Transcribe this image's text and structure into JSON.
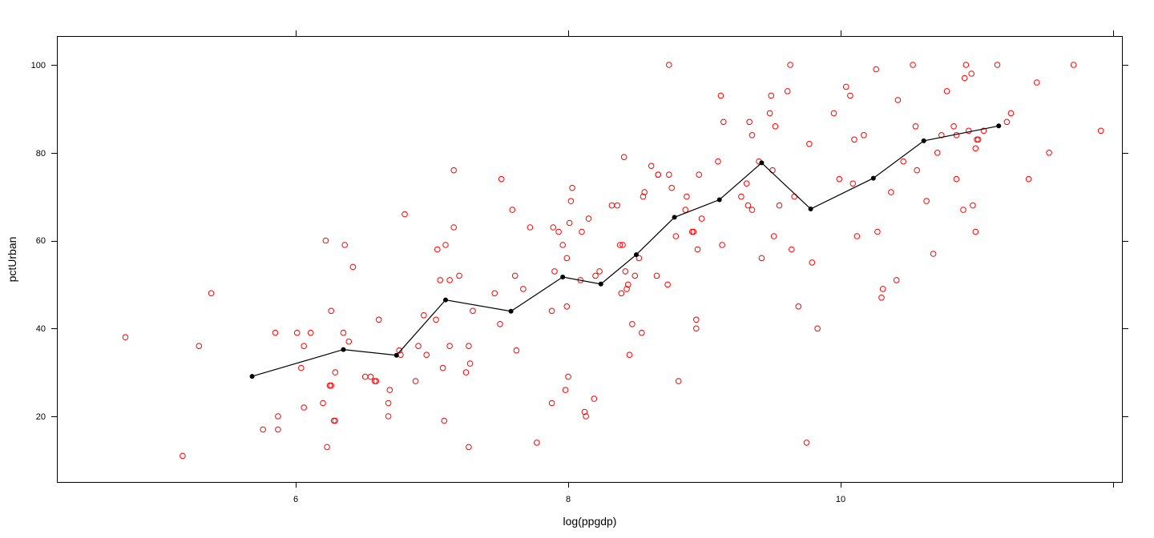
{
  "chart_data": {
    "type": "scatter",
    "title": "",
    "xlabel": "log(ppgdp)",
    "ylabel": "pctUrban",
    "xlim": [
      4.25,
      12.04
    ],
    "ylim": [
      6.3,
      106.4
    ],
    "x_ticks": [
      6,
      8,
      10,
      12
    ],
    "x_tick_labels": [
      "6",
      "8",
      "10",
      ""
    ],
    "y_ticks": [
      20,
      40,
      60,
      80,
      100
    ],
    "y_tick_labels": [
      "20",
      "40",
      "60",
      "80",
      "100"
    ],
    "grid": false,
    "legend": null,
    "colors": {
      "points": "#ff0000",
      "line": "#000000",
      "frame": "#000000"
    },
    "series": [
      {
        "name": "observations",
        "type": "scatter",
        "marker": "open-circle",
        "points": [
          [
            4.75,
            38
          ],
          [
            5.17,
            11
          ],
          [
            5.29,
            36
          ],
          [
            5.38,
            48
          ],
          [
            5.76,
            17
          ],
          [
            5.85,
            39
          ],
          [
            5.87,
            17
          ],
          [
            5.87,
            20
          ],
          [
            6.01,
            39
          ],
          [
            6.04,
            31
          ],
          [
            6.06,
            36
          ],
          [
            6.06,
            22
          ],
          [
            6.11,
            39
          ],
          [
            6.2,
            23
          ],
          [
            6.22,
            60
          ],
          [
            6.23,
            13
          ],
          [
            6.25,
            27
          ],
          [
            6.26,
            27
          ],
          [
            6.26,
            44
          ],
          [
            6.28,
            19
          ],
          [
            6.29,
            19
          ],
          [
            6.29,
            30
          ],
          [
            6.35,
            39
          ],
          [
            6.36,
            59
          ],
          [
            6.39,
            37
          ],
          [
            6.42,
            54
          ],
          [
            6.51,
            29
          ],
          [
            6.55,
            29
          ],
          [
            6.58,
            28
          ],
          [
            6.59,
            28
          ],
          [
            6.61,
            42
          ],
          [
            6.68,
            23
          ],
          [
            6.68,
            20
          ],
          [
            6.69,
            26
          ],
          [
            6.76,
            35
          ],
          [
            6.77,
            34
          ],
          [
            6.8,
            66
          ],
          [
            6.88,
            28
          ],
          [
            6.9,
            36
          ],
          [
            6.94,
            43
          ],
          [
            6.96,
            34
          ],
          [
            7.03,
            42
          ],
          [
            7.04,
            58
          ],
          [
            7.06,
            51
          ],
          [
            7.08,
            31
          ],
          [
            7.09,
            19
          ],
          [
            7.1,
            59
          ],
          [
            7.13,
            36
          ],
          [
            7.13,
            51
          ],
          [
            7.16,
            63
          ],
          [
            7.16,
            76
          ],
          [
            7.2,
            52
          ],
          [
            7.25,
            30
          ],
          [
            7.27,
            36
          ],
          [
            7.27,
            13
          ],
          [
            7.28,
            32
          ],
          [
            7.3,
            44
          ],
          [
            7.46,
            48
          ],
          [
            7.5,
            41
          ],
          [
            7.51,
            74
          ],
          [
            7.59,
            67
          ],
          [
            7.61,
            52
          ],
          [
            7.62,
            35
          ],
          [
            7.67,
            49
          ],
          [
            7.72,
            63
          ],
          [
            7.77,
            14
          ],
          [
            7.88,
            23
          ],
          [
            7.88,
            44
          ],
          [
            7.89,
            63
          ],
          [
            7.9,
            53
          ],
          [
            7.93,
            62
          ],
          [
            7.96,
            59
          ],
          [
            7.98,
            26
          ],
          [
            7.99,
            56
          ],
          [
            7.99,
            45
          ],
          [
            8.0,
            29
          ],
          [
            8.01,
            64
          ],
          [
            8.02,
            69
          ],
          [
            8.03,
            72
          ],
          [
            8.09,
            51
          ],
          [
            8.1,
            62
          ],
          [
            8.12,
            21
          ],
          [
            8.13,
            20
          ],
          [
            8.15,
            65
          ],
          [
            8.19,
            24
          ],
          [
            8.2,
            52
          ],
          [
            8.23,
            53
          ],
          [
            8.32,
            68
          ],
          [
            8.36,
            68
          ],
          [
            8.38,
            59
          ],
          [
            8.39,
            48
          ],
          [
            8.4,
            59
          ],
          [
            8.41,
            79
          ],
          [
            8.42,
            53
          ],
          [
            8.43,
            49
          ],
          [
            8.44,
            50
          ],
          [
            8.45,
            34
          ],
          [
            8.47,
            41
          ],
          [
            8.49,
            52
          ],
          [
            8.52,
            56
          ],
          [
            8.54,
            39
          ],
          [
            8.55,
            70
          ],
          [
            8.56,
            71
          ],
          [
            8.61,
            77
          ],
          [
            8.65,
            52
          ],
          [
            8.66,
            75
          ],
          [
            8.66,
            75
          ],
          [
            8.73,
            50
          ],
          [
            8.74,
            75
          ],
          [
            8.74,
            100
          ],
          [
            8.76,
            72
          ],
          [
            8.79,
            61
          ],
          [
            8.81,
            28
          ],
          [
            8.86,
            67
          ],
          [
            8.87,
            70
          ],
          [
            8.91,
            62
          ],
          [
            8.92,
            62
          ],
          [
            8.94,
            42
          ],
          [
            8.94,
            40
          ],
          [
            8.95,
            58
          ],
          [
            8.96,
            75
          ],
          [
            8.98,
            65
          ],
          [
            9.1,
            78
          ],
          [
            9.12,
            93
          ],
          [
            9.13,
            59
          ],
          [
            9.14,
            87
          ],
          [
            9.27,
            70
          ],
          [
            9.31,
            73
          ],
          [
            9.32,
            68
          ],
          [
            9.33,
            87
          ],
          [
            9.35,
            67
          ],
          [
            9.35,
            84
          ],
          [
            9.4,
            78
          ],
          [
            9.42,
            56
          ],
          [
            9.48,
            89
          ],
          [
            9.49,
            93
          ],
          [
            9.5,
            76
          ],
          [
            9.51,
            61
          ],
          [
            9.52,
            86
          ],
          [
            9.55,
            68
          ],
          [
            9.61,
            94
          ],
          [
            9.63,
            100
          ],
          [
            9.64,
            58
          ],
          [
            9.66,
            70
          ],
          [
            9.69,
            45
          ],
          [
            9.75,
            14
          ],
          [
            9.77,
            82
          ],
          [
            9.79,
            55
          ],
          [
            9.83,
            40
          ],
          [
            9.95,
            89
          ],
          [
            9.99,
            74
          ],
          [
            10.04,
            95
          ],
          [
            10.07,
            93
          ],
          [
            10.09,
            73
          ],
          [
            10.1,
            83
          ],
          [
            10.12,
            61
          ],
          [
            10.17,
            84
          ],
          [
            10.26,
            99
          ],
          [
            10.27,
            62
          ],
          [
            10.3,
            47
          ],
          [
            10.31,
            49
          ],
          [
            10.37,
            71
          ],
          [
            10.41,
            51
          ],
          [
            10.42,
            92
          ],
          [
            10.46,
            78
          ],
          [
            10.53,
            100
          ],
          [
            10.55,
            86
          ],
          [
            10.56,
            76
          ],
          [
            10.63,
            69
          ],
          [
            10.68,
            57
          ],
          [
            10.71,
            80
          ],
          [
            10.74,
            84
          ],
          [
            10.78,
            94
          ],
          [
            10.83,
            86
          ],
          [
            10.85,
            84
          ],
          [
            10.85,
            74
          ],
          [
            10.9,
            67
          ],
          [
            10.91,
            97
          ],
          [
            10.92,
            100
          ],
          [
            10.94,
            85
          ],
          [
            10.96,
            98
          ],
          [
            10.97,
            68
          ],
          [
            10.99,
            81
          ],
          [
            10.99,
            62
          ],
          [
            11.0,
            83
          ],
          [
            11.01,
            83
          ],
          [
            11.05,
            85
          ],
          [
            11.15,
            100
          ],
          [
            11.22,
            87
          ],
          [
            11.25,
            89
          ],
          [
            11.38,
            74
          ],
          [
            11.44,
            96
          ],
          [
            11.53,
            80
          ],
          [
            11.71,
            100
          ],
          [
            11.91,
            85
          ]
        ]
      },
      {
        "name": "smooth (loess-style average)",
        "type": "line",
        "marker": "filled-circle",
        "points": [
          [
            5.68,
            29.1
          ],
          [
            6.35,
            35.2
          ],
          [
            6.74,
            33.9
          ],
          [
            7.1,
            46.5
          ],
          [
            7.58,
            43.9
          ],
          [
            7.96,
            51.7
          ],
          [
            8.24,
            50.1
          ],
          [
            8.5,
            56.8
          ],
          [
            8.78,
            65.3
          ],
          [
            9.11,
            69.3
          ],
          [
            9.42,
            77.7
          ],
          [
            9.78,
            67.2
          ],
          [
            10.24,
            74.2
          ],
          [
            10.61,
            82.7
          ],
          [
            11.16,
            86.1
          ]
        ]
      }
    ]
  },
  "axes": {
    "x_title": "log(ppgdp)",
    "y_title": "pctUrban",
    "x_tick_labels": [
      "6",
      "8",
      "10"
    ],
    "y_tick_labels": [
      "20",
      "40",
      "60",
      "80",
      "100"
    ]
  }
}
